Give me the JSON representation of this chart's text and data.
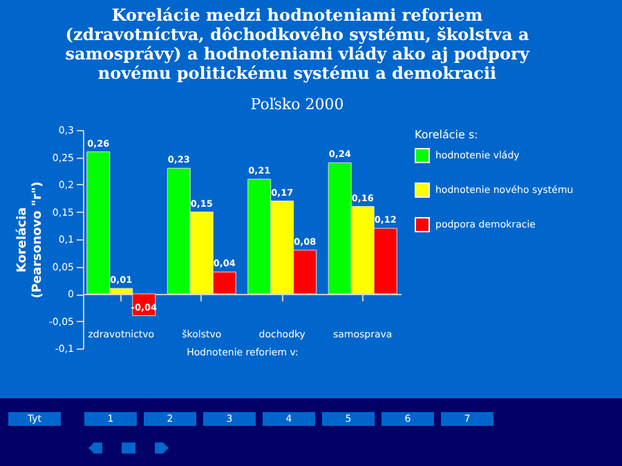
{
  "chart_data": {
    "type": "bar",
    "title": "Korelácie medzi hodnoteniami reforiem (zdravotníctva, dôchodkového systému, školstva a samosprávy) a hodnoteniami vlády ako aj podpory novému politickému systému a demokracii",
    "subtitle": "Poľsko 2000",
    "xlabel": "Hodnotenie reforiem v:",
    "ylabel": "Korelácia\n(Pearsonovo \"r\")",
    "legend_title": "Korelácie s:",
    "categories": [
      "zdravotnictvo",
      "školstvo",
      "dochodky",
      "samosprava"
    ],
    "series": [
      {
        "name": "hodnotenie vlády",
        "color": "#00ff00",
        "values": [
          0.26,
          0.23,
          0.21,
          0.24
        ],
        "value_labels": [
          "0,26",
          "0,23",
          "0,21",
          "0,24"
        ]
      },
      {
        "name": "hodnotenie nového systému",
        "color": "#ffff00",
        "values": [
          0.01,
          0.15,
          0.17,
          0.16
        ],
        "value_labels": [
          "0,01",
          "0,15",
          "0,17",
          "0,16"
        ]
      },
      {
        "name": "podpora demokracie",
        "color": "#ff0000",
        "values": [
          -0.04,
          0.04,
          0.08,
          0.12
        ],
        "value_labels": [
          "-0,04",
          "0,04",
          "0,08",
          "0,12"
        ]
      }
    ],
    "ylim": [
      -0.1,
      0.3
    ],
    "yticks": [
      {
        "value": -0.1,
        "label": "-0,1"
      },
      {
        "value": -0.05,
        "label": "-0,05"
      },
      0,
      {
        "value": 0.05,
        "label": "0,05"
      },
      {
        "value": 0.1,
        "label": "0,1"
      },
      {
        "value": 0.15,
        "label": "0,15"
      },
      {
        "value": 0.2,
        "label": "0,2"
      },
      {
        "value": 0.25,
        "label": "0,25"
      },
      {
        "value": 0.3,
        "label": "0,3"
      }
    ],
    "legend": "right",
    "annotations": [
      "Tyt",
      "1",
      "2",
      "3",
      "4",
      "5",
      "6",
      "7"
    ]
  }
}
